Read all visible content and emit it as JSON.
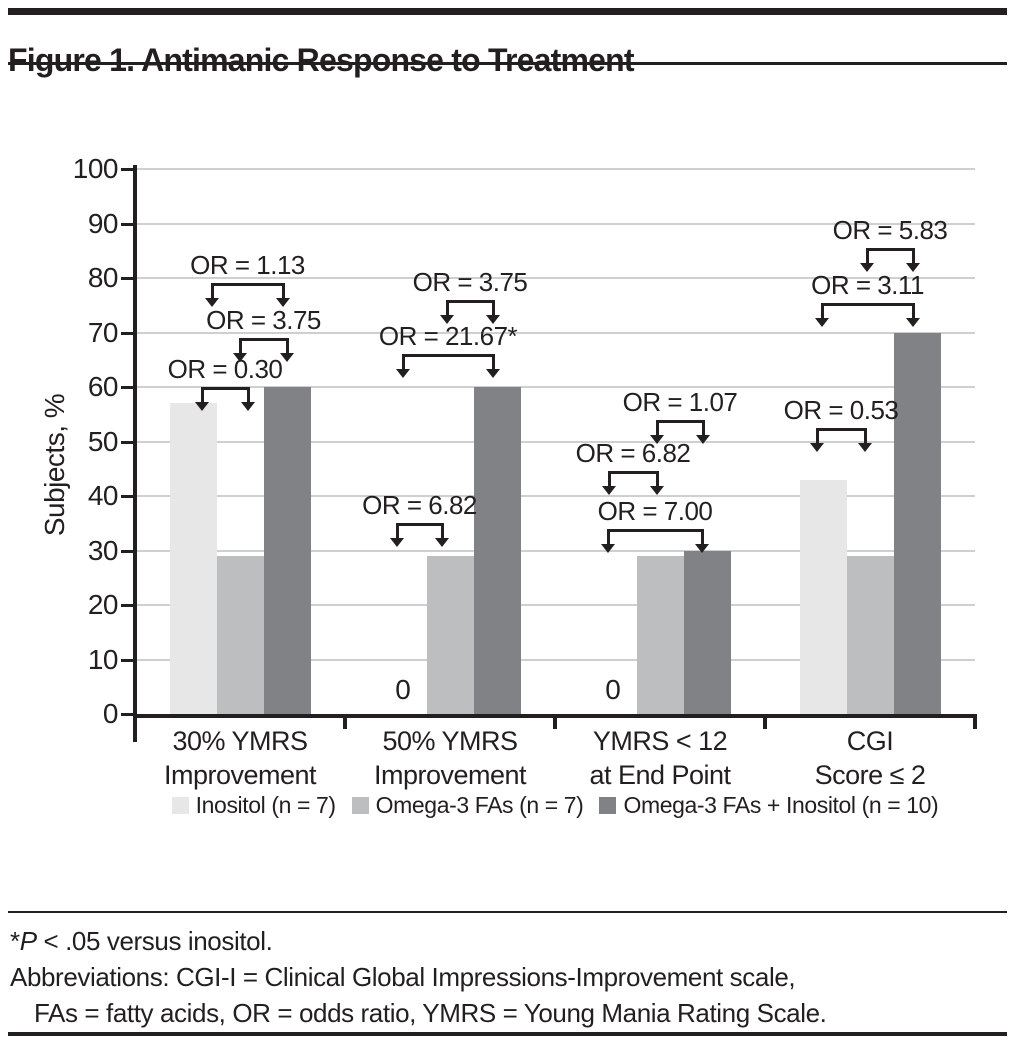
{
  "figure": {
    "title": "Figure 1. Antimanic Response to Treatment"
  },
  "chart_data": {
    "type": "bar",
    "title": "Antimanic Response to Treatment",
    "xlabel": "",
    "ylabel": "Subjects, %",
    "ylim": [
      0,
      100
    ],
    "ytick_step": 10,
    "yticks": [
      0,
      10,
      20,
      30,
      40,
      50,
      60,
      70,
      80,
      90,
      100
    ],
    "grid": true,
    "legend_position": "bottom",
    "categories": [
      [
        "30% YMRS",
        "Improvement"
      ],
      [
        "50% YMRS",
        "Improvement"
      ],
      [
        "YMRS < 12",
        "at End Point"
      ],
      [
        "CGI",
        "Score ≤ 2"
      ]
    ],
    "series": [
      {
        "name": "Inositol (n = 7)",
        "color": "#e7e7e8",
        "values": [
          57,
          0,
          0,
          43
        ]
      },
      {
        "name": "Omega-3 FAs (n = 7)",
        "color": "#bcbec0",
        "values": [
          29,
          29,
          29,
          29
        ]
      },
      {
        "name": "Omega-3 FAs + Inositol (n = 10)",
        "color": "#808285",
        "values": [
          60,
          60,
          30,
          70
        ]
      }
    ],
    "zero_labels": [
      {
        "group": 1,
        "series": 0,
        "text": "0"
      },
      {
        "group": 2,
        "series": 0,
        "text": "0"
      }
    ],
    "annotations": [
      {
        "group": 0,
        "label": "OR = 1.13",
        "from": 0,
        "to": 2,
        "y": 79,
        "inset": [
          19,
          -4
        ]
      },
      {
        "group": 0,
        "label": "OR = 3.75",
        "from": 1,
        "to": 2,
        "y": 69,
        "inset": [
          0,
          0
        ]
      },
      {
        "group": 0,
        "label": "OR = 0.30",
        "from": 0,
        "to": 1,
        "y": 60,
        "inset": [
          9,
          8
        ]
      },
      {
        "group": 1,
        "label": "OR = 3.75",
        "from": 1,
        "to": 2,
        "y": 76,
        "inset": [
          -3,
          -4
        ]
      },
      {
        "group": 1,
        "label": "OR = 21.67*",
        "from": 0,
        "to": 2,
        "y": 66,
        "inset": [
          0,
          -4
        ]
      },
      {
        "group": 1,
        "label": "OR = 6.82",
        "from": 0,
        "to": 1,
        "y": 35,
        "inset": [
          -6,
          -8
        ]
      },
      {
        "group": 2,
        "label": "OR = 1.07",
        "from": 1,
        "to": 2,
        "y": 54,
        "inset": [
          -3,
          -4
        ]
      },
      {
        "group": 2,
        "label": "OR = 6.82",
        "from": 0,
        "to": 1,
        "y": 44.5,
        "inset": [
          -4,
          -3
        ]
      },
      {
        "group": 2,
        "label": "OR = 7.00",
        "from": 0,
        "to": 2,
        "y": 34,
        "inset": [
          -5,
          -5
        ]
      },
      {
        "group": 3,
        "label": "OR = 5.83",
        "from": 1,
        "to": 2,
        "y": 85.5,
        "inset": [
          -3,
          -4
        ]
      },
      {
        "group": 3,
        "label": "OR = 3.11",
        "from": 0,
        "to": 2,
        "y": 75.5,
        "inset": [
          -1,
          -4
        ]
      },
      {
        "group": 3,
        "label": "OR = 0.53",
        "from": 0,
        "to": 1,
        "y": 52.5,
        "inset": [
          -6,
          -5
        ]
      }
    ]
  },
  "footnote": {
    "star": "*",
    "p": "P",
    "line1_rest": " < .05 versus inositol.",
    "line2": "Abbreviations: CGI-I = Clinical Global Impressions-Improvement scale,",
    "line3": "FAs = fatty acids, OR = odds ratio, YMRS = Young Mania Rating Scale."
  }
}
